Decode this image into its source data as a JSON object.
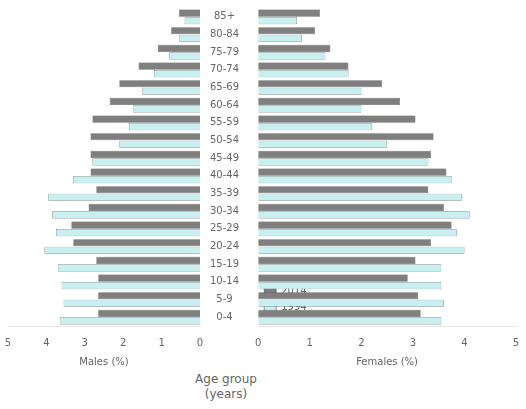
{
  "chart_data": [
    {
      "type": "bar",
      "orientation": "horizontal",
      "xlabel": "Males (%)",
      "ylabel": "Age group\n(years)",
      "categories": [
        "0-4",
        "5-9",
        "10-14",
        "15-19",
        "20-24",
        "25-29",
        "30-34",
        "35-39",
        "40-44",
        "45-49",
        "50-54",
        "55-59",
        "60-64",
        "65-69",
        "70-74",
        "75-79",
        "80-84",
        "85+"
      ],
      "series": [
        {
          "name": "2014",
          "color": "#7f7f7f",
          "values": [
            2.65,
            2.65,
            2.65,
            2.7,
            3.3,
            3.35,
            2.9,
            2.7,
            2.85,
            2.85,
            2.85,
            2.8,
            2.35,
            2.1,
            1.6,
            1.1,
            0.75,
            0.55
          ]
        },
        {
          "name": "1994",
          "color": "#c8f0f0",
          "values": [
            3.65,
            3.55,
            3.6,
            3.7,
            4.05,
            3.75,
            3.85,
            3.95,
            3.3,
            2.8,
            2.1,
            1.85,
            1.75,
            1.5,
            1.2,
            0.8,
            0.55,
            0.4
          ]
        }
      ],
      "xlim": [
        5,
        0
      ],
      "xticks": [
        5,
        4,
        3,
        2,
        1,
        0
      ],
      "grid": false
    },
    {
      "type": "bar",
      "orientation": "horizontal",
      "xlabel": "Females (%)",
      "categories": [
        "0-4",
        "5-9",
        "10-14",
        "15-19",
        "20-24",
        "25-29",
        "30-34",
        "35-39",
        "40-44",
        "45-49",
        "50-54",
        "55-59",
        "60-64",
        "65-69",
        "70-74",
        "75-79",
        "80-84",
        "85+"
      ],
      "series": [
        {
          "name": "2014",
          "color": "#7f7f7f",
          "values": [
            3.15,
            3.1,
            2.9,
            3.05,
            3.35,
            3.75,
            3.6,
            3.3,
            3.65,
            3.35,
            3.4,
            3.05,
            2.75,
            2.4,
            1.75,
            1.4,
            1.1,
            1.2
          ]
        },
        {
          "name": "1994",
          "color": "#c8f0f0",
          "values": [
            3.55,
            3.6,
            3.55,
            3.55,
            4.0,
            3.85,
            4.1,
            3.95,
            3.75,
            3.3,
            2.5,
            2.2,
            2.0,
            2.0,
            1.75,
            1.3,
            0.85,
            0.75
          ]
        }
      ],
      "xlim": [
        0,
        5
      ],
      "xticks": [
        0,
        1,
        2,
        3,
        4,
        5
      ],
      "grid": false,
      "legend": "upper right",
      "tick_labels": "x"
    }
  ]
}
